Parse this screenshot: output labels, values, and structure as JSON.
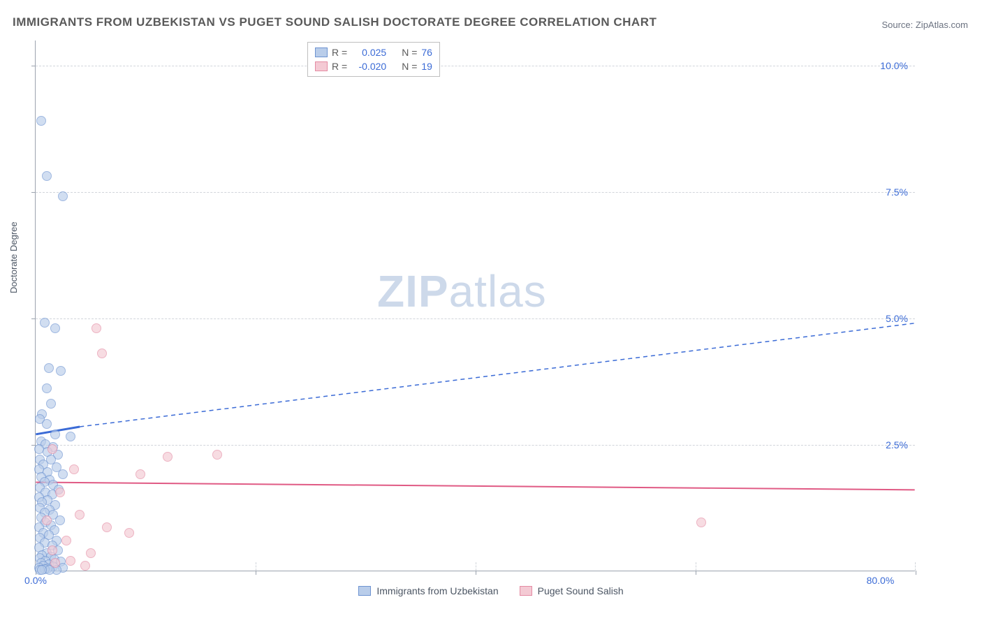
{
  "title": "IMMIGRANTS FROM UZBEKISTAN VS PUGET SOUND SALISH DOCTORATE DEGREE CORRELATION CHART",
  "source_label": "Source: ZipAtlas.com",
  "y_axis_title": "Doctorate Degree",
  "watermark": {
    "bold": "ZIP",
    "rest": "atlas"
  },
  "chart": {
    "type": "scatter",
    "xlim": [
      0,
      80
    ],
    "ylim": [
      0,
      10.5
    ],
    "y_ticks": [
      2.5,
      5.0,
      7.5,
      10.0
    ],
    "y_tick_labels": [
      "2.5%",
      "5.0%",
      "7.5%",
      "10.0%"
    ],
    "x_ticks": [
      0,
      20,
      40,
      60,
      80
    ],
    "x_tick_visible_labels": {
      "0": "0.0%",
      "80": "80.0%"
    },
    "grid_color": "#d1d5db",
    "axis_color": "#9ca3af",
    "background_color": "#ffffff",
    "marker_radius": 7,
    "marker_stroke_width": 1,
    "series": [
      {
        "name": "Immigrants from Uzbekistan",
        "fill_color": "#b9cdea",
        "stroke_color": "#6d93d1",
        "fill_opacity": 0.65,
        "R": "0.025",
        "N": "76",
        "trend": {
          "solid_from": [
            0,
            2.7
          ],
          "solid_to": [
            4,
            2.85
          ],
          "dash_to": [
            80,
            4.9
          ],
          "color": "#3b6bd6",
          "width": 2,
          "dash": "6,5"
        },
        "points": [
          [
            0.5,
            8.9
          ],
          [
            1.0,
            7.8
          ],
          [
            2.5,
            7.4
          ],
          [
            0.8,
            4.9
          ],
          [
            1.8,
            4.8
          ],
          [
            1.2,
            4.0
          ],
          [
            2.3,
            3.95
          ],
          [
            1.0,
            3.6
          ],
          [
            1.4,
            3.3
          ],
          [
            0.6,
            3.1
          ],
          [
            0.4,
            3.0
          ],
          [
            1.0,
            2.9
          ],
          [
            1.8,
            2.7
          ],
          [
            3.2,
            2.65
          ],
          [
            0.5,
            2.55
          ],
          [
            0.9,
            2.5
          ],
          [
            1.6,
            2.45
          ],
          [
            0.3,
            2.4
          ],
          [
            1.1,
            2.35
          ],
          [
            2.0,
            2.3
          ],
          [
            0.4,
            2.2
          ],
          [
            1.4,
            2.2
          ],
          [
            0.7,
            2.1
          ],
          [
            1.9,
            2.05
          ],
          [
            0.3,
            2.0
          ],
          [
            1.1,
            1.95
          ],
          [
            2.5,
            1.9
          ],
          [
            0.5,
            1.85
          ],
          [
            1.3,
            1.8
          ],
          [
            0.8,
            1.75
          ],
          [
            1.6,
            1.7
          ],
          [
            0.4,
            1.65
          ],
          [
            2.1,
            1.6
          ],
          [
            0.9,
            1.55
          ],
          [
            1.5,
            1.5
          ],
          [
            0.3,
            1.45
          ],
          [
            1.1,
            1.4
          ],
          [
            0.6,
            1.35
          ],
          [
            1.8,
            1.3
          ],
          [
            0.4,
            1.25
          ],
          [
            1.3,
            1.2
          ],
          [
            0.8,
            1.15
          ],
          [
            1.6,
            1.1
          ],
          [
            0.5,
            1.05
          ],
          [
            2.2,
            1.0
          ],
          [
            0.9,
            0.95
          ],
          [
            1.4,
            0.9
          ],
          [
            0.3,
            0.85
          ],
          [
            1.7,
            0.8
          ],
          [
            0.7,
            0.75
          ],
          [
            1.2,
            0.7
          ],
          [
            0.4,
            0.65
          ],
          [
            1.9,
            0.6
          ],
          [
            0.8,
            0.55
          ],
          [
            1.5,
            0.5
          ],
          [
            0.3,
            0.45
          ],
          [
            2.0,
            0.4
          ],
          [
            1.0,
            0.35
          ],
          [
            0.6,
            0.3
          ],
          [
            1.4,
            0.28
          ],
          [
            0.4,
            0.25
          ],
          [
            1.7,
            0.22
          ],
          [
            0.9,
            0.2
          ],
          [
            2.3,
            0.18
          ],
          [
            0.5,
            0.15
          ],
          [
            1.2,
            0.12
          ],
          [
            0.7,
            0.1
          ],
          [
            1.6,
            0.08
          ],
          [
            0.3,
            0.06
          ],
          [
            2.5,
            0.05
          ],
          [
            1.1,
            0.04
          ],
          [
            0.8,
            0.03
          ],
          [
            1.9,
            0.02
          ],
          [
            0.4,
            0.02
          ],
          [
            1.3,
            0.01
          ],
          [
            0.6,
            0.01
          ]
        ]
      },
      {
        "name": "Puget Sound Salish",
        "fill_color": "#f4cad4",
        "stroke_color": "#e48ba3",
        "fill_opacity": 0.65,
        "R": "-0.020",
        "N": "19",
        "trend": {
          "solid_from": [
            0,
            1.75
          ],
          "solid_to": [
            80,
            1.6
          ],
          "color": "#e05a84",
          "width": 2
        },
        "points": [
          [
            5.5,
            4.8
          ],
          [
            6.0,
            4.3
          ],
          [
            1.5,
            2.4
          ],
          [
            3.5,
            2.0
          ],
          [
            12.0,
            2.25
          ],
          [
            16.5,
            2.3
          ],
          [
            9.5,
            1.9
          ],
          [
            2.2,
            1.55
          ],
          [
            4.0,
            1.1
          ],
          [
            1.0,
            1.0
          ],
          [
            6.5,
            0.85
          ],
          [
            8.5,
            0.75
          ],
          [
            2.8,
            0.6
          ],
          [
            1.5,
            0.4
          ],
          [
            5.0,
            0.35
          ],
          [
            60.5,
            0.95
          ],
          [
            3.2,
            0.2
          ],
          [
            1.8,
            0.15
          ],
          [
            4.5,
            0.1
          ]
        ]
      }
    ]
  },
  "legend_top": {
    "R_label": "R =",
    "N_label": "N ="
  },
  "legend_bottom": {
    "items": [
      "Immigrants from Uzbekistan",
      "Puget Sound Salish"
    ]
  }
}
